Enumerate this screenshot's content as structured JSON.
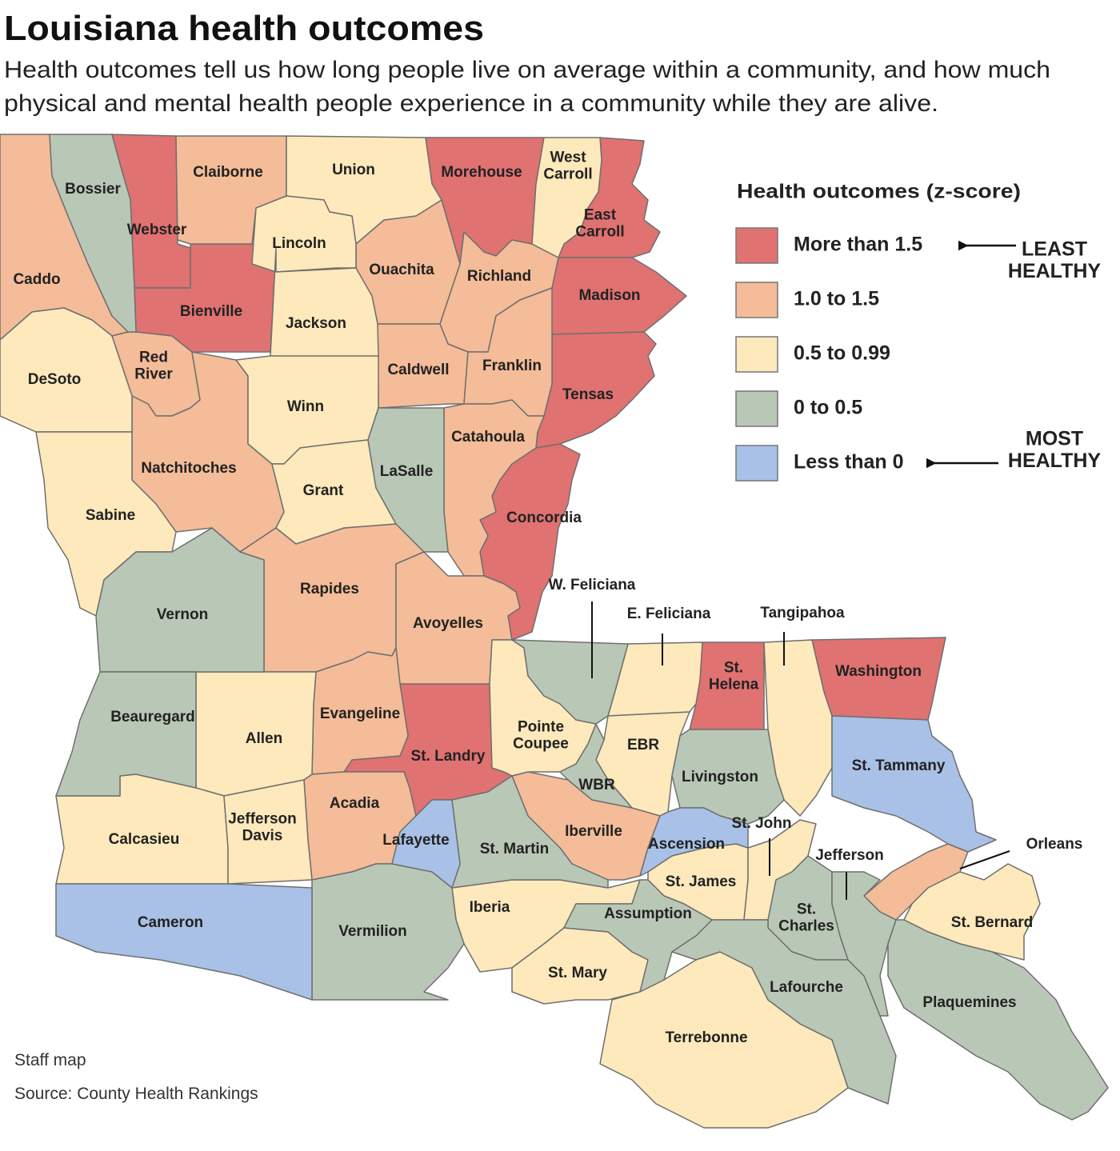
{
  "header": {
    "title": "Louisiana health outcomes",
    "subtitle": [
      "Health outcomes tell us how long people live on average within a community, and how much",
      "physical and mental health people experience in a community while they are alive."
    ]
  },
  "legend": {
    "title": "Health outcomes (z-score)",
    "top_note": "LEAST HEALTHY",
    "bottom_note": "MOST HEALTHY",
    "items": [
      {
        "label": "More than 1.5",
        "color": "#e07272",
        "parishes": [
          "Webster",
          "Morehouse",
          "East Carroll",
          "Bienville",
          "Madison",
          "Tensas",
          "Concordia",
          "St. Landry",
          "St. Helena",
          "Washington"
        ]
      },
      {
        "label": "1.0 to 1.5",
        "color": "#f4bc98",
        "parishes": [
          "Claiborne",
          "Caddo",
          "Ouachita",
          "Richland",
          "Red River",
          "Caldwell",
          "Franklin",
          "Catahoula",
          "Natchitoches",
          "Rapides",
          "Avoyelles",
          "Evangeline",
          "Acadia",
          "Iberville",
          "Orleans"
        ]
      },
      {
        "label": "0.5 to 0.99",
        "color": "#fde9bb",
        "parishes": [
          "Union",
          "West Carroll",
          "Lincoln",
          "Jackson",
          "DeSoto",
          "Winn",
          "Grant",
          "Sabine",
          "Allen",
          "Calcasieu",
          "Jefferson Davis",
          "Pointe Coupee",
          "EBR",
          "E. Feliciana",
          "Tangipahoa",
          "St. James",
          "St. John",
          "Iberia",
          "St. Mary",
          "Terrebonne",
          "St. Bernard"
        ]
      },
      {
        "label": "0 to 0.5",
        "color": "#b9c8b6",
        "parishes": [
          "Bossier",
          "LaSalle",
          "Vernon",
          "Beauregard",
          "W. Feliciana",
          "WBR",
          "Livingston",
          "St. Martin",
          "Vermilion",
          "Assumption",
          "St. Charles",
          "Lafourche",
          "Jefferson",
          "Plaquemines"
        ]
      },
      {
        "label": "Less than 0",
        "color": "#a9c1e6",
        "parishes": [
          "Lafayette",
          "Ascension",
          "St. Tammany",
          "Cameron"
        ]
      }
    ]
  },
  "footer": {
    "credit": "Staff map",
    "source": "Source: County Health Rankings"
  }
}
